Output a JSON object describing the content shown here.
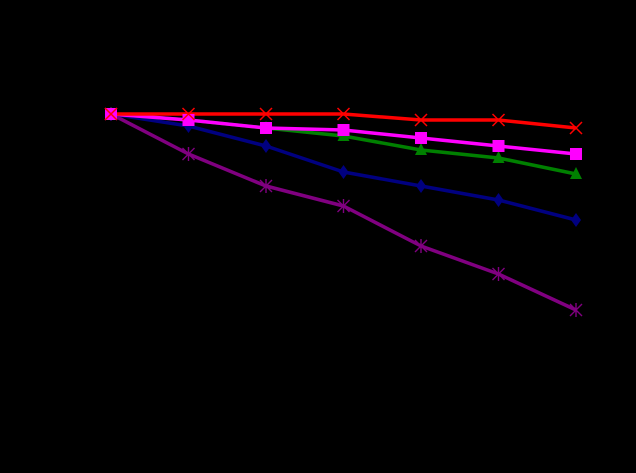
{
  "background": "#000000",
  "chart_data": {
    "type": "line",
    "x": [
      1,
      2,
      3,
      4,
      5,
      6,
      7
    ],
    "ylim": [
      0,
      1
    ],
    "grid": false,
    "series": [
      {
        "color": "#ff0000",
        "marker": "x",
        "values": [
          1.0,
          1.0,
          1.0,
          1.0,
          0.985,
          0.985,
          0.965
        ]
      },
      {
        "color": "#ff00ff",
        "marker": "square",
        "values": [
          1.0,
          0.985,
          0.965,
          0.96,
          0.94,
          0.92,
          0.9
        ]
      },
      {
        "color": "#008000",
        "marker": "triangle",
        "values": [
          1.0,
          0.985,
          0.965,
          0.945,
          0.91,
          0.89,
          0.85
        ]
      },
      {
        "color": "#000080",
        "marker": "diamond",
        "values": [
          1.0,
          0.97,
          0.92,
          0.855,
          0.82,
          0.785,
          0.735
        ]
      },
      {
        "color": "#800080",
        "marker": "asterisk",
        "values": [
          1.0,
          0.9,
          0.82,
          0.77,
          0.67,
          0.6,
          0.51
        ]
      }
    ]
  }
}
